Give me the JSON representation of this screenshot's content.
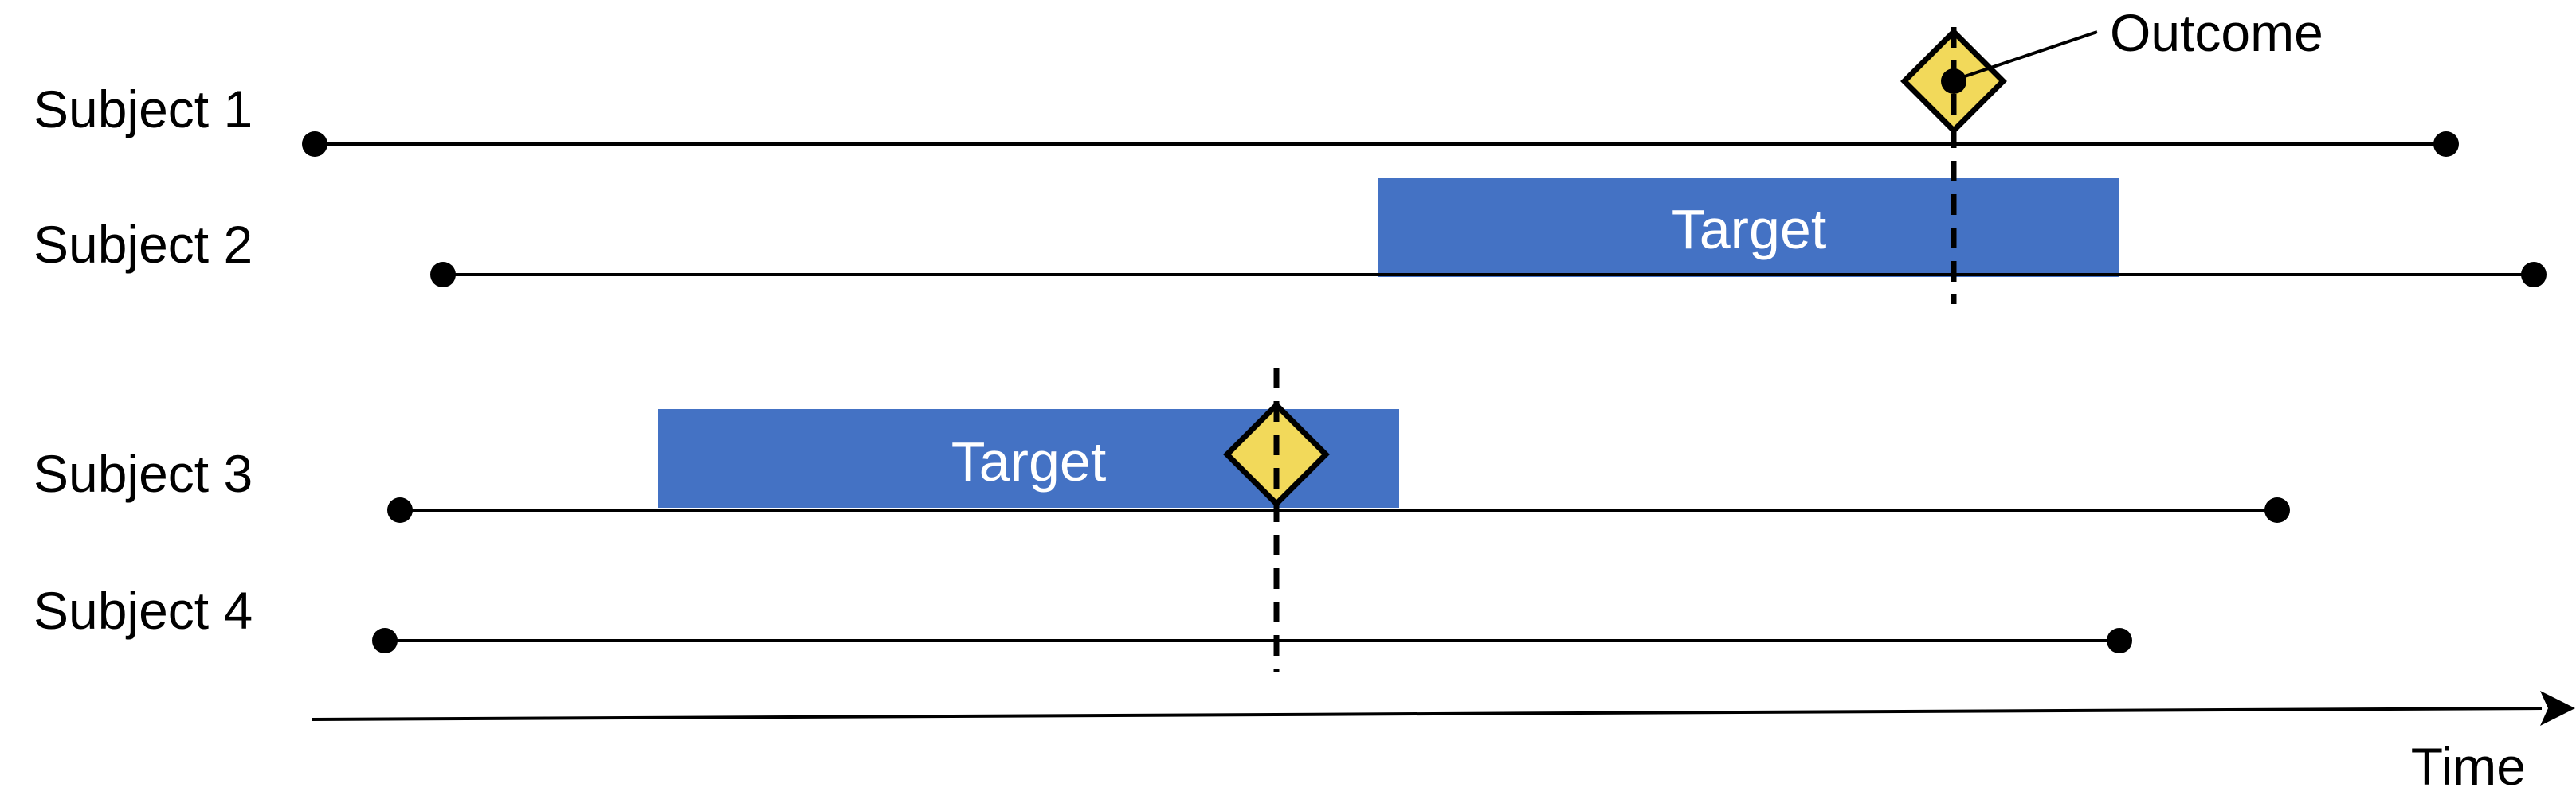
{
  "colors": {
    "target_fill": "#4472C4",
    "outcome_fill": "#F2D95A",
    "line": "#000000",
    "background": "#FFFFFF"
  },
  "subjects": [
    {
      "label": "Subject 1"
    },
    {
      "label": "Subject 2"
    },
    {
      "label": "Subject 3"
    },
    {
      "label": "Subject 4"
    }
  ],
  "targets": [
    {
      "label": "Target",
      "subject": "Subject 2"
    },
    {
      "label": "Target",
      "subject": "Subject 3"
    }
  ],
  "outcomes": [
    {
      "subject": "Subject 1",
      "marker": "diamond-icon"
    },
    {
      "subject": "Subject 3",
      "marker": "diamond-icon"
    }
  ],
  "outcome_callout": {
    "label": "Outcome"
  },
  "axis": {
    "label": "Time"
  }
}
